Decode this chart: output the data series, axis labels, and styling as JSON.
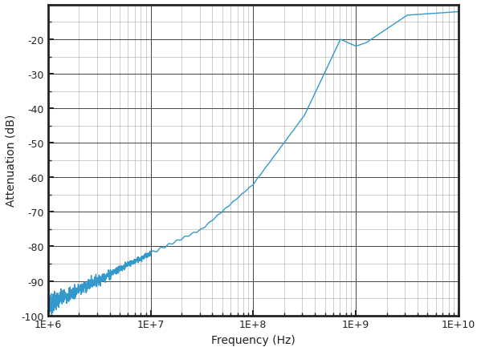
{
  "xlabel": "Frequency (Hz)",
  "ylabel": "Attenuation (dB)",
  "xmin": 1000000.0,
  "xmax": 10000000000.0,
  "ymin": -100,
  "ymax": -10,
  "yticks": [
    -100,
    -90,
    -80,
    -70,
    -60,
    -50,
    -40,
    -30,
    -20
  ],
  "xticks": [
    1000000.0,
    10000000.0,
    100000000.0,
    1000000000.0,
    10000000000.0
  ],
  "xticklabels": [
    "1E+6",
    "1E+7",
    "1E+8",
    "1E+9",
    "1E+10"
  ],
  "line_color": "#3399cc",
  "bg_color": "#ffffff",
  "border_color": "#222222",
  "grid_major_color": "#444444",
  "grid_minor_color": "#888888",
  "text_color": "#222222"
}
